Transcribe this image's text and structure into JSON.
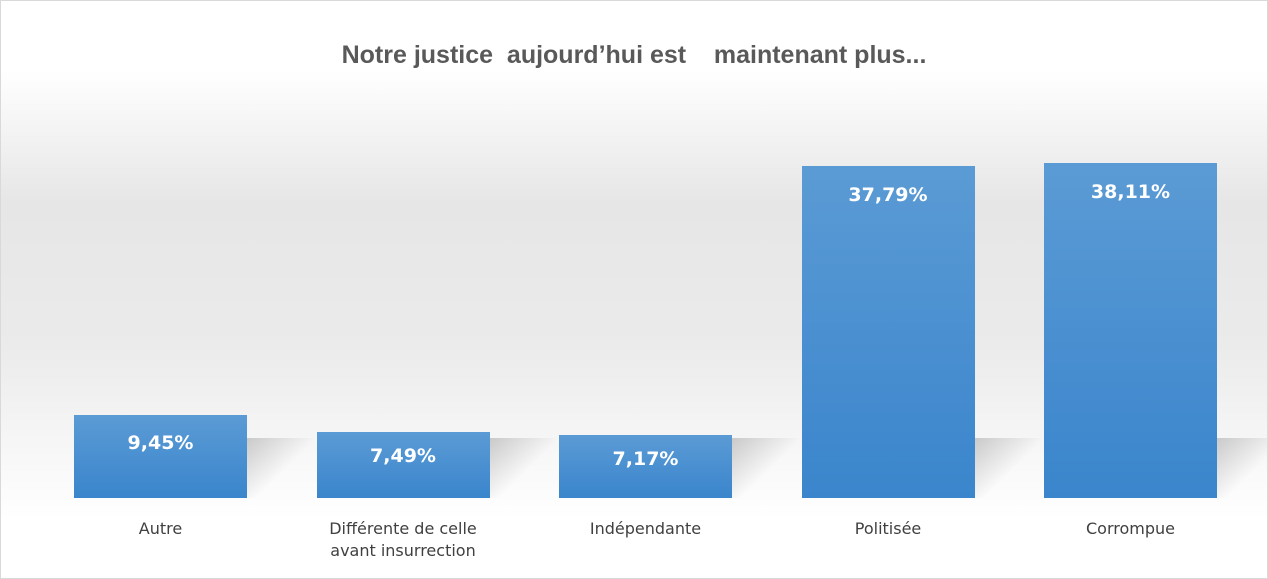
{
  "chart_data": {
    "type": "bar",
    "title": "Notre justice  aujourd’hui est    maintenant plus...",
    "categories": [
      "Autre",
      "Différente  de celle\navant insurrection",
      "Indépendante",
      "Politisée",
      "Corrompue"
    ],
    "values": [
      9.45,
      7.49,
      7.17,
      37.79,
      38.11
    ],
    "value_labels": [
      "9,45%",
      "7,49%",
      "7,17%",
      "37,79%",
      "38,11%"
    ],
    "color": "#5b9bd5"
  }
}
